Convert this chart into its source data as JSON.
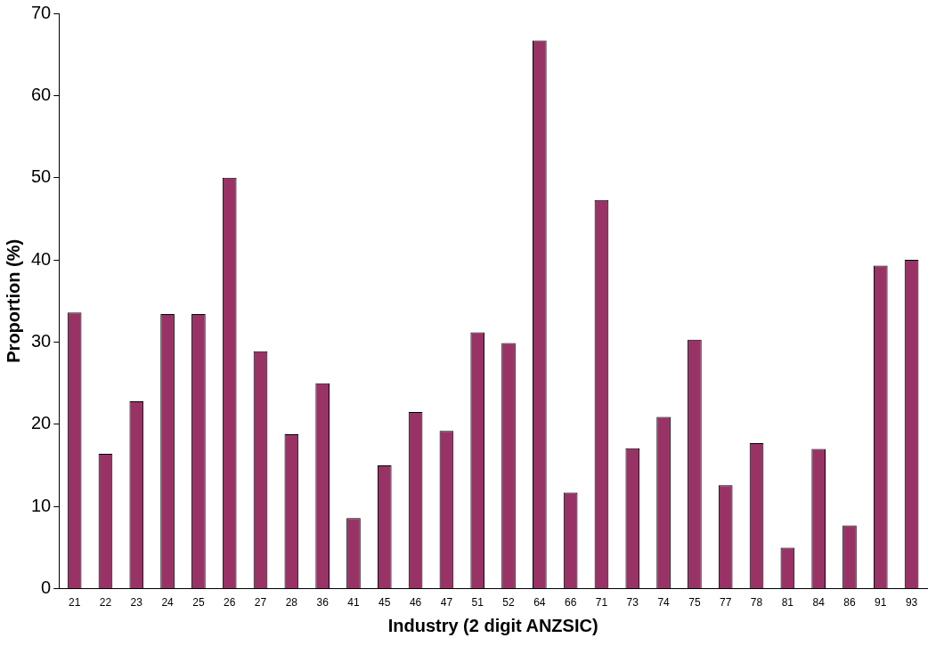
{
  "chart_data": {
    "type": "bar",
    "xlabel": "Industry (2 digit ANZSIC)",
    "ylabel": "Proportion (%)",
    "categories": [
      "21",
      "22",
      "23",
      "24",
      "25",
      "26",
      "27",
      "28",
      "36",
      "41",
      "45",
      "46",
      "47",
      "51",
      "52",
      "64",
      "66",
      "71",
      "73",
      "74",
      "75",
      "77",
      "78",
      "81",
      "84",
      "86",
      "91",
      "93"
    ],
    "values": [
      33.6,
      16.4,
      22.8,
      33.4,
      33.4,
      50,
      28.9,
      18.8,
      25,
      8.6,
      15,
      21.5,
      19.2,
      31.2,
      29.9,
      66.7,
      11.7,
      47.3,
      17.1,
      20.9,
      30.3,
      12.6,
      17.7,
      5,
      17,
      7.7,
      39.3,
      40
    ],
    "color": "#993366",
    "ylim": [
      0,
      70
    ],
    "yticks": [
      0,
      10,
      20,
      30,
      40,
      50,
      60,
      70
    ],
    "grid": false,
    "legend": false
  }
}
